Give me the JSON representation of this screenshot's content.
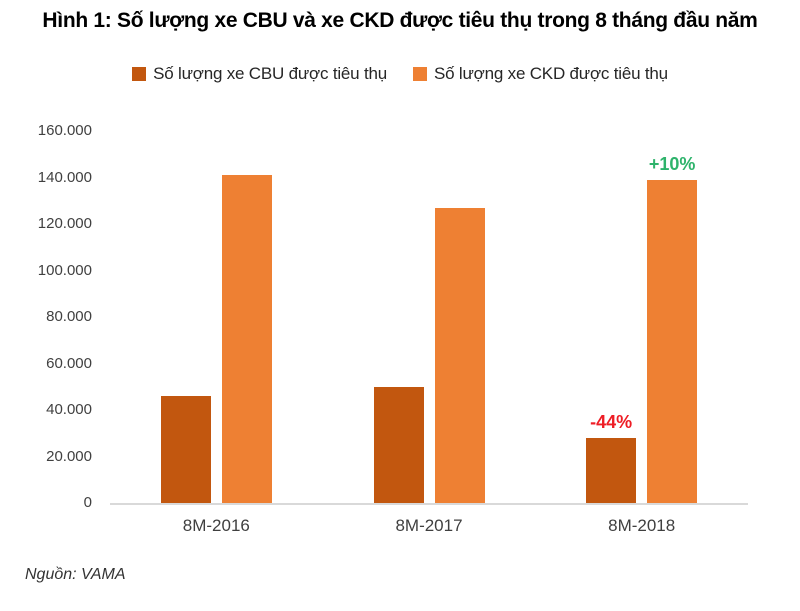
{
  "source_note": "Nguồn: VAMA",
  "chart_data": {
    "type": "bar",
    "title": "Hình 1: Số lượng xe CBU và xe CKD được tiêu thụ trong 8 tháng đầu năm",
    "categories": [
      "8M-2016",
      "8M-2017",
      "8M-2018"
    ],
    "series": [
      {
        "name": "Số lượng xe CBU được tiêu thụ",
        "color": "#C2570F",
        "values": [
          46000,
          50000,
          28000
        ]
      },
      {
        "name": "Số lượng xe CKD được tiêu thụ",
        "color": "#EE8033",
        "values": [
          141000,
          127000,
          139000
        ]
      }
    ],
    "ylim": [
      0,
      160000
    ],
    "ytick_step": 20000,
    "ytick_labels": [
      "0",
      "20.000",
      "40.000",
      "60.000",
      "80.000",
      "100.000",
      "120.000",
      "140.000",
      "160.000"
    ],
    "grid": false,
    "legend_position": "top",
    "axis_color": "#D9D9D9",
    "annotations": [
      {
        "category_index": 2,
        "series_index": 0,
        "text": "-44%",
        "color": "#EE1D25"
      },
      {
        "category_index": 2,
        "series_index": 1,
        "text": "+10%",
        "color": "#2EB36B"
      }
    ]
  }
}
